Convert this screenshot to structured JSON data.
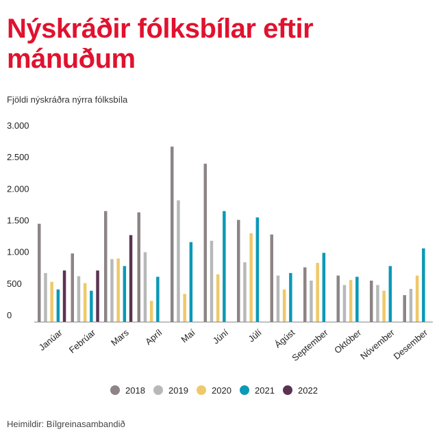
{
  "chart_data": {
    "type": "bar",
    "title": "Nýskráðir fólksbílar eftir mánuðum",
    "subtitle": "Fjöldi nýskráðra nýrra fólksbíla",
    "source": "Heimildir: Bílgreinasambandið",
    "categories": [
      "Janúar",
      "Febrúar",
      "Mars",
      "Apríl",
      "Maí",
      "Júní",
      "Júlí",
      "Ágúst",
      "September",
      "Október",
      "Nóvember",
      "Desember"
    ],
    "series": [
      {
        "name": "2018",
        "color": "#8c8485",
        "values": [
          1550,
          1080,
          1750,
          1730,
          2770,
          2500,
          1610,
          1380,
          860,
          730,
          650,
          420
        ]
      },
      {
        "name": "2019",
        "color": "#b7b9b8",
        "values": [
          770,
          720,
          990,
          1100,
          1920,
          1280,
          940,
          730,
          650,
          580,
          580,
          520
        ]
      },
      {
        "name": "2020",
        "color": "#efc86a",
        "values": [
          630,
          610,
          1000,
          330,
          440,
          750,
          1400,
          510,
          930,
          660,
          490,
          730
        ]
      },
      {
        "name": "2021",
        "color": "#0a99b7",
        "values": [
          510,
          490,
          880,
          710,
          1260,
          1750,
          1650,
          770,
          1090,
          710,
          880,
          1160
        ]
      },
      {
        "name": "2022",
        "color": "#5b3352",
        "values": [
          810,
          810,
          1370,
          null,
          null,
          null,
          null,
          null,
          null,
          null,
          null,
          null
        ]
      }
    ],
    "yticks": [
      {
        "value": 0,
        "label": "0"
      },
      {
        "value": 500,
        "label": "500"
      },
      {
        "value": 1000,
        "label": "1.000"
      },
      {
        "value": 1500,
        "label": "1.500"
      },
      {
        "value": 2000,
        "label": "2.000"
      },
      {
        "value": 2500,
        "label": "2.500"
      },
      {
        "value": 3000,
        "label": "3.000"
      }
    ],
    "ylim": [
      0,
      3000
    ],
    "grid": false,
    "legend_position": "bottom"
  }
}
